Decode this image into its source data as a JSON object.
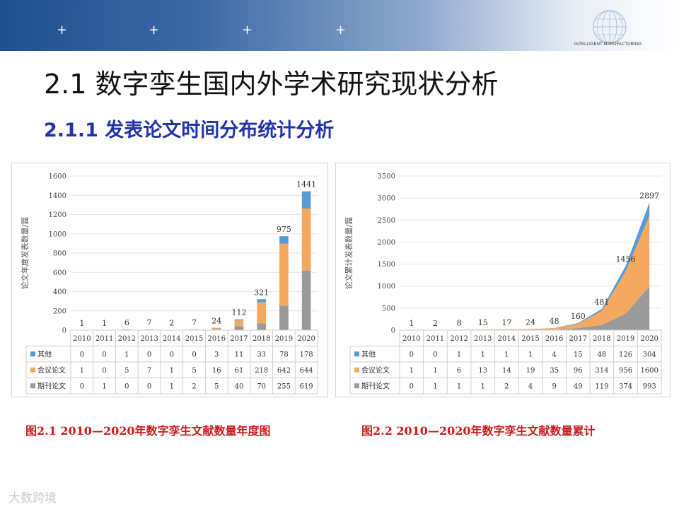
{
  "header": {
    "plus_marks": [
      "+",
      "+",
      "+",
      "+"
    ],
    "logo_caption": "INTELLIGENT MANUFACTURING"
  },
  "title": "2.1 数字孪生国内外学术研究现状分析",
  "subtitle": "2.1.1 发表论文时间分布统计分析",
  "watermark": "大数跨境",
  "colors": {
    "other": "#5b9bd5",
    "conference": "#f4a95e",
    "journal": "#9a9a9a",
    "caption": "#cc1a1a",
    "subtitle": "#2233aa"
  },
  "chart_data": [
    {
      "type": "bar",
      "stacked": true,
      "caption": "图2.1 2010—2020年数字孪生文献数量年度图",
      "ylabel": "论文年度发表数量/篇",
      "ylim": [
        0,
        1600
      ],
      "yticks": [
        "0",
        "200",
        "400",
        "600",
        "800",
        "1000",
        "1200",
        "1400",
        "1600"
      ],
      "categories": [
        "2010",
        "2011",
        "2012",
        "2013",
        "2014",
        "2015",
        "2016",
        "2017",
        "2018",
        "2019",
        "2020"
      ],
      "totals": [
        "1",
        "1",
        "6",
        "7",
        "2",
        "7",
        "24",
        "112",
        "321",
        "975",
        "1441"
      ],
      "series": [
        {
          "name": "其他",
          "values": [
            0,
            0,
            1,
            0,
            0,
            0,
            3,
            11,
            33,
            78,
            178
          ]
        },
        {
          "name": "会议论文",
          "values": [
            1,
            0,
            5,
            7,
            1,
            5,
            16,
            61,
            218,
            642,
            644
          ]
        },
        {
          "name": "期刊论文",
          "values": [
            0,
            1,
            0,
            0,
            1,
            2,
            5,
            40,
            70,
            255,
            619
          ]
        }
      ]
    },
    {
      "type": "area",
      "stacked": true,
      "caption": "图2.2 2010—2020年数字孪生文献数量累计",
      "ylabel": "论文累计发表数量/篇",
      "ylim": [
        0,
        3500
      ],
      "yticks": [
        "0",
        "500",
        "1000",
        "1500",
        "2000",
        "2500",
        "3000",
        "3500"
      ],
      "categories": [
        "2010",
        "2011",
        "2012",
        "2013",
        "2014",
        "2015",
        "2016",
        "2017",
        "2018",
        "2019",
        "2020"
      ],
      "totals": [
        "1",
        "2",
        "8",
        "15",
        "17",
        "24",
        "48",
        "160",
        "481",
        "1456",
        "2897"
      ],
      "series": [
        {
          "name": "其他",
          "values": [
            0,
            0,
            1,
            1,
            1,
            1,
            4,
            15,
            48,
            126,
            304
          ]
        },
        {
          "name": "会议论文",
          "values": [
            1,
            1,
            6,
            13,
            14,
            19,
            35,
            96,
            314,
            956,
            1600
          ]
        },
        {
          "name": "期刊论文",
          "values": [
            0,
            1,
            1,
            1,
            2,
            4,
            9,
            49,
            119,
            374,
            993
          ]
        }
      ]
    }
  ]
}
